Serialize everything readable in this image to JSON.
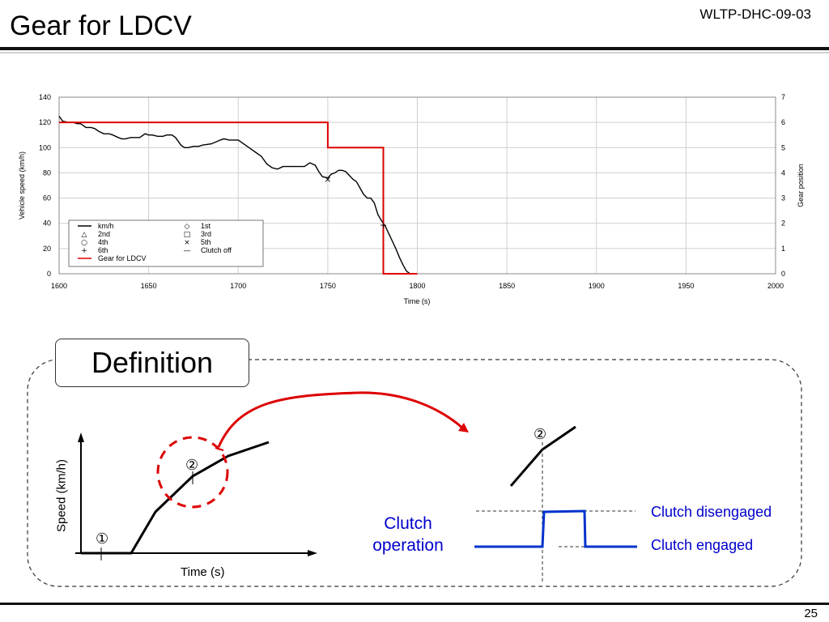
{
  "header": {
    "title": "Gear for LDCV",
    "doc_id": "WLTP-DHC-09-03",
    "page_number": "25"
  },
  "chart_data": {
    "type": "line",
    "x_axis": {
      "label": "Time (s)",
      "range": [
        1600,
        2000
      ],
      "ticks": [
        "1600",
        "1650",
        "1700",
        "1750",
        "1800",
        "1850",
        "1900",
        "1950",
        "2000"
      ]
    },
    "y_axis_left": {
      "label": "Vehicle speed (km/h)",
      "range": [
        0,
        140
      ],
      "ticks": [
        "0",
        "20",
        "40",
        "60",
        "80",
        "100",
        "120",
        "140"
      ]
    },
    "y_axis_right": {
      "label": "Gear position",
      "range": [
        0,
        7
      ],
      "ticks": [
        "0",
        "1",
        "2",
        "3",
        "4",
        "5",
        "6",
        "7"
      ]
    },
    "grid": true,
    "legend_position": "bottom-left",
    "legend": [
      {
        "label": "km/h",
        "symbol": "line",
        "color": "#000000"
      },
      {
        "label": "1st",
        "symbol": "◇"
      },
      {
        "label": "2nd",
        "symbol": "△"
      },
      {
        "label": "3rd",
        "symbol": "□"
      },
      {
        "label": "4th",
        "symbol": "○"
      },
      {
        "label": "5th",
        "symbol": "×"
      },
      {
        "label": "6th",
        "symbol": "+"
      },
      {
        "label": "Clutch off",
        "symbol": "—"
      },
      {
        "label": "Gear for LDCV",
        "symbol": "line",
        "color": "#dd0000"
      }
    ],
    "series": [
      {
        "name": "km/h",
        "axis": "left",
        "color": "#000000",
        "x": [
          1600,
          1602,
          1605,
          1608,
          1610,
          1612,
          1615,
          1618,
          1620,
          1622,
          1625,
          1628,
          1630,
          1633,
          1635,
          1637,
          1640,
          1642,
          1645,
          1648,
          1650,
          1652,
          1655,
          1658,
          1660,
          1663,
          1665,
          1668,
          1670,
          1672,
          1675,
          1678,
          1680,
          1685,
          1690,
          1692,
          1695,
          1698,
          1700,
          1703,
          1705,
          1708,
          1710,
          1713,
          1716,
          1719,
          1722,
          1725,
          1728,
          1731,
          1734,
          1737,
          1740,
          1743,
          1745,
          1747,
          1750,
          1752,
          1754,
          1756,
          1758,
          1760,
          1762,
          1764,
          1766,
          1768,
          1770,
          1772,
          1774,
          1776,
          1778,
          1780,
          1782,
          1784,
          1786,
          1788,
          1790,
          1792,
          1794,
          1796
        ],
        "y": [
          125,
          121,
          120,
          120,
          119,
          119,
          116,
          116,
          115,
          113,
          111,
          111,
          110,
          108,
          107,
          107,
          108,
          108,
          108,
          111,
          110,
          110,
          109,
          109,
          110,
          110,
          108,
          102,
          100,
          100,
          101,
          101,
          102,
          103,
          106,
          107,
          106,
          106,
          106,
          103,
          101,
          98,
          96,
          93,
          87,
          84,
          83,
          85,
          85,
          85,
          85,
          85,
          88,
          86,
          81,
          77,
          76,
          79,
          80,
          82,
          82,
          81,
          78,
          75,
          73,
          68,
          63,
          60,
          60,
          56,
          47,
          42,
          38,
          32,
          26,
          20,
          13,
          7,
          2,
          0
        ]
      },
      {
        "name": "Gear for LDCV",
        "axis": "right",
        "color": "#dd0000",
        "x": [
          1600,
          1750,
          1750,
          1781,
          1781,
          1800
        ],
        "y": [
          6,
          6,
          5,
          5,
          0,
          0
        ]
      }
    ],
    "markers": [
      {
        "label": "5th",
        "symbol": "×",
        "x": 1750,
        "y": 75
      },
      {
        "label": "6th",
        "symbol": "+",
        "x": 1781,
        "y": 39
      }
    ]
  },
  "definition": {
    "title": "Definition",
    "circle_1": "①",
    "circle_2": "②",
    "circle_2_detail": "②",
    "speed_axis_label": "Speed (km/h)",
    "time_axis_label": "Time (s)",
    "clutch_operation": "Clutch operation",
    "clutch_disengaged": "Clutch disengaged",
    "clutch_engaged": "Clutch engaged"
  }
}
